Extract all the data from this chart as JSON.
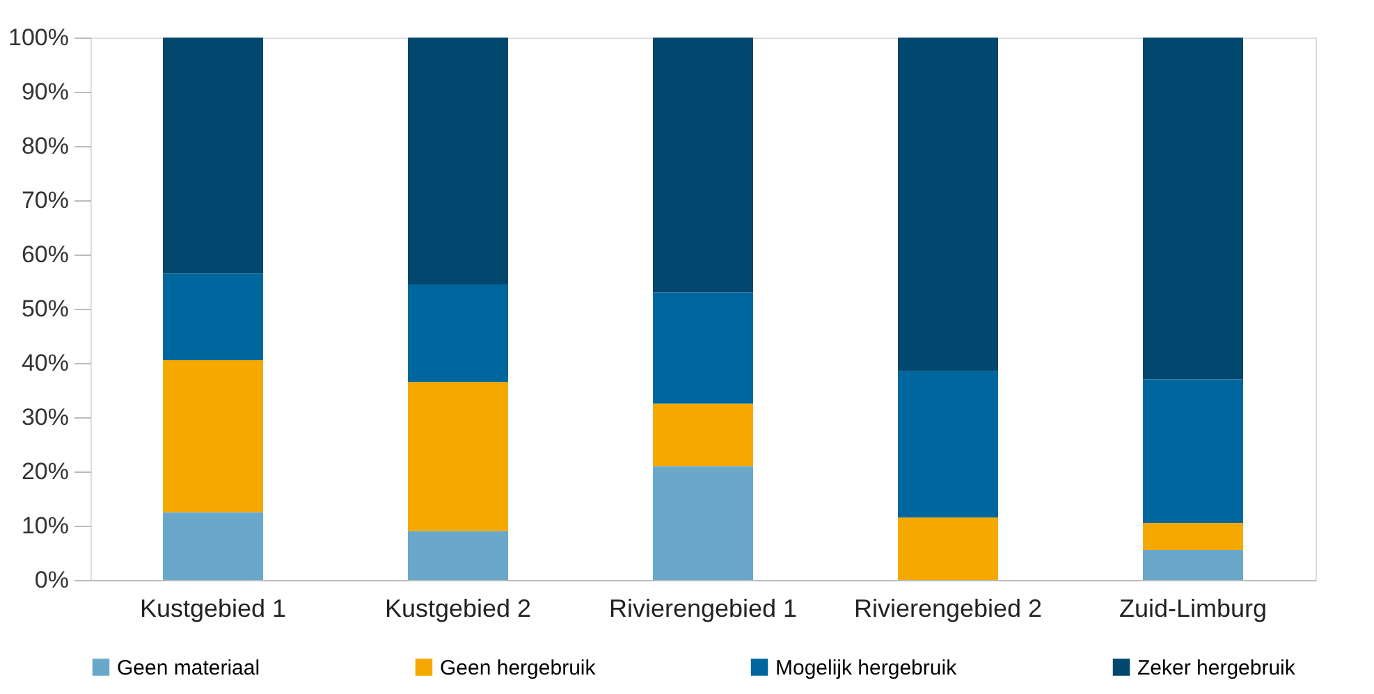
{
  "chart_data": {
    "type": "bar",
    "stacked": true,
    "categories": [
      "Kustgebied 1",
      "Kustgebied 2",
      "Rivierengebied 1",
      "Rivierengebied 2",
      "Zuid-Limburg"
    ],
    "series": [
      {
        "name": "Geen materiaal",
        "color": "#6aa8cb",
        "values": [
          12.5,
          9,
          21,
          0,
          5.5
        ]
      },
      {
        "name": "Geen hergebruik",
        "color": "#f5a800",
        "values": [
          28,
          27.5,
          11.5,
          11.5,
          5
        ]
      },
      {
        "name": "Mogelijk hergebruik",
        "color": "#00679e",
        "values": [
          16,
          18,
          20.5,
          27,
          26.5
        ]
      },
      {
        "name": "Zeker hergebruik",
        "color": "#01476e",
        "values": [
          43.5,
          45.5,
          47,
          61.5,
          63
        ]
      }
    ],
    "ylim": [
      0,
      100
    ],
    "yticks": [
      {
        "value": 0,
        "label": "0%"
      },
      {
        "value": 10,
        "label": "10%"
      },
      {
        "value": 20,
        "label": "20%"
      },
      {
        "value": 30,
        "label": "30%"
      },
      {
        "value": 40,
        "label": "40%"
      },
      {
        "value": 50,
        "label": "50%"
      },
      {
        "value": 60,
        "label": "60%"
      },
      {
        "value": 70,
        "label": "70%"
      },
      {
        "value": 80,
        "label": "80%"
      },
      {
        "value": 90,
        "label": "90%"
      },
      {
        "value": 100,
        "label": "100%"
      }
    ],
    "grid": false,
    "legend": "bottom"
  }
}
